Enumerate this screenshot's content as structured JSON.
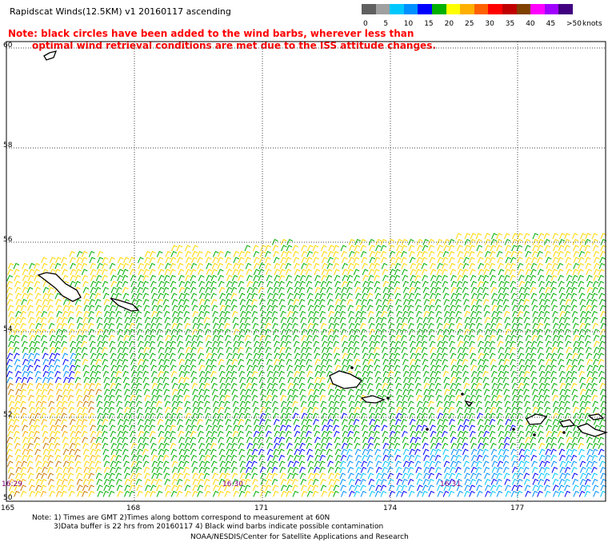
{
  "header": {
    "title": "Rapidscat Winds(12.5KM) v1 20160117 ascending",
    "note_line1": "Note: black circles have been added to the wind barbs, wherever less than",
    "note_line2": "optimal wind retrieval conditions are met due to the ISS attitude changes."
  },
  "color_scale": {
    "labels": [
      "0",
      "5",
      "10",
      "15",
      "20",
      "25",
      "30",
      "35",
      "40",
      "45",
      ">50"
    ],
    "units": "knots",
    "colors": [
      "#606060",
      "#a0a0a0",
      "#00c8ff",
      "#0090ff",
      "#0000ff",
      "#00b000",
      "#ffff00",
      "#ffb000",
      "#ff6000",
      "#ff0000",
      "#c00000",
      "#804000",
      "#ff00ff",
      "#a000ff",
      "#400080"
    ]
  },
  "map": {
    "lat_labels": [
      "60",
      "58",
      "56",
      "54",
      "52",
      "50"
    ],
    "lon_labels": [
      "165",
      "168",
      "171",
      "174",
      "177"
    ],
    "time_labels": [
      "16:29",
      "16:30",
      "16:31"
    ]
  },
  "footer": {
    "line1": "Note: 1) Times are GMT 2)Times along bottom correspond to measurement at 60N",
    "line2": "3)Data buffer is 22 hrs from 20160117 4) Black wind barbs indicate possible contamination",
    "credit": "NOAA/NESDIS/Center for Satellite Applications and Research"
  }
}
